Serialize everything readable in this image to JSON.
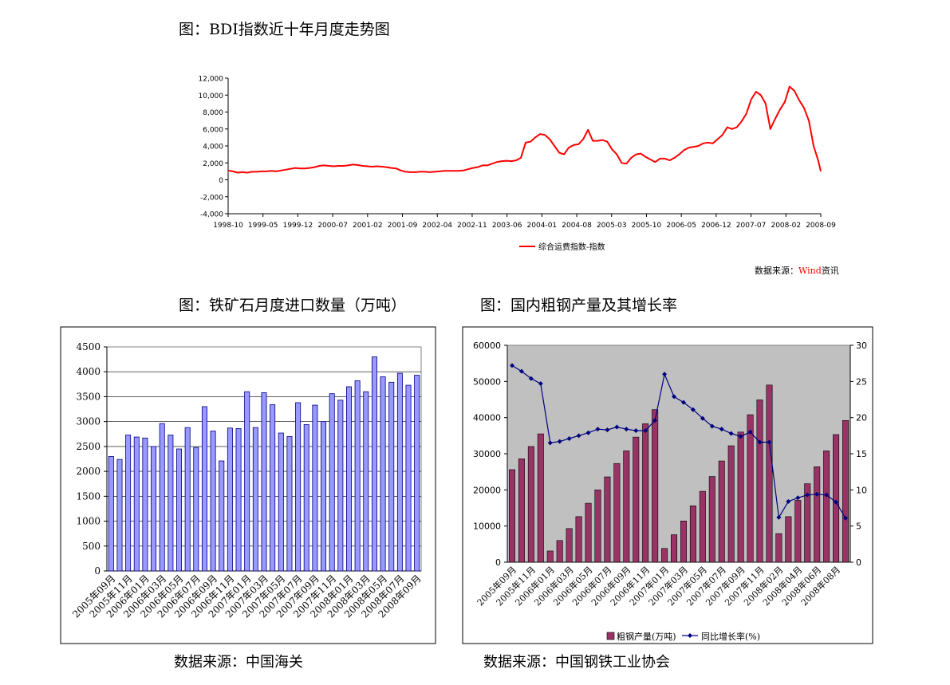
{
  "page": {
    "bdi_title": "图：BDI指数近十年月度走势图",
    "ore_title": "图：铁矿石月度进口数量（万吨）",
    "steel_title": "图：国内粗钢产量及其增长率",
    "ore_source": "数据来源：中国海关",
    "steel_source": "数据来源：中国钢铁工业协会"
  },
  "chart_data": [
    {
      "id": "bdi",
      "type": "line",
      "title": "BDI指数近十年月度走势图",
      "legend": "综合运费指数-指数",
      "source_label": "数据来源：",
      "source_name": "Wind",
      "source_suffix": "资讯",
      "colors": {
        "line": "#ff0000",
        "source": "#ff0000"
      },
      "ylim": [
        -4000,
        12000
      ],
      "yticks": [
        "12,000",
        "10,000",
        "8,000",
        "6,000",
        "4,000",
        "2,000",
        "0",
        "-2,000",
        "-4,000"
      ],
      "ytick_values": [
        12000,
        10000,
        8000,
        6000,
        4000,
        2000,
        0,
        -2000,
        -4000
      ],
      "xticks": [
        "1998-10",
        "1999-05",
        "1999-12",
        "2000-07",
        "2001-02",
        "2001-09",
        "2002-04",
        "2002-11",
        "2003-06",
        "2004-01",
        "2004-08",
        "2005-03",
        "2005-10",
        "2006-05",
        "2006-12",
        "2007-07",
        "2008-02",
        "2008-09"
      ],
      "points": [
        [
          0,
          1100
        ],
        [
          2,
          1000
        ],
        [
          4,
          850
        ],
        [
          6,
          900
        ],
        [
          8,
          850
        ],
        [
          10,
          950
        ],
        [
          12,
          950
        ],
        [
          14,
          1000
        ],
        [
          16,
          1000
        ],
        [
          18,
          1050
        ],
        [
          20,
          1000
        ],
        [
          22,
          1100
        ],
        [
          24,
          1200
        ],
        [
          26,
          1300
        ],
        [
          28,
          1400
        ],
        [
          30,
          1350
        ],
        [
          32,
          1350
        ],
        [
          34,
          1400
        ],
        [
          36,
          1500
        ],
        [
          38,
          1650
        ],
        [
          40,
          1700
        ],
        [
          42,
          1650
        ],
        [
          44,
          1600
        ],
        [
          46,
          1650
        ],
        [
          48,
          1650
        ],
        [
          50,
          1700
        ],
        [
          52,
          1800
        ],
        [
          54,
          1750
        ],
        [
          56,
          1650
        ],
        [
          58,
          1600
        ],
        [
          60,
          1550
        ],
        [
          62,
          1600
        ],
        [
          64,
          1550
        ],
        [
          66,
          1500
        ],
        [
          68,
          1400
        ],
        [
          70,
          1350
        ],
        [
          72,
          1100
        ],
        [
          74,
          950
        ],
        [
          76,
          900
        ],
        [
          78,
          900
        ],
        [
          80,
          950
        ],
        [
          82,
          950
        ],
        [
          84,
          900
        ],
        [
          86,
          950
        ],
        [
          88,
          1000
        ],
        [
          90,
          1050
        ],
        [
          92,
          1050
        ],
        [
          94,
          1050
        ],
        [
          96,
          1050
        ],
        [
          98,
          1100
        ],
        [
          100,
          1250
        ],
        [
          102,
          1400
        ],
        [
          104,
          1500
        ],
        [
          106,
          1700
        ],
        [
          108,
          1700
        ],
        [
          110,
          1900
        ],
        [
          112,
          2100
        ],
        [
          114,
          2200
        ],
        [
          116,
          2250
        ],
        [
          118,
          2200
        ],
        [
          120,
          2300
        ],
        [
          122,
          2600
        ],
        [
          124,
          4400
        ],
        [
          126,
          4500
        ],
        [
          128,
          5000
        ],
        [
          130,
          5400
        ],
        [
          132,
          5300
        ],
        [
          134,
          4800
        ],
        [
          136,
          4000
        ],
        [
          138,
          3200
        ],
        [
          140,
          3000
        ],
        [
          142,
          3800
        ],
        [
          144,
          4100
        ],
        [
          146,
          4200
        ],
        [
          148,
          4800
        ],
        [
          150,
          5900
        ],
        [
          152,
          4600
        ],
        [
          154,
          4600
        ],
        [
          156,
          4700
        ],
        [
          158,
          4500
        ],
        [
          160,
          3600
        ],
        [
          162,
          3000
        ],
        [
          164,
          2000
        ],
        [
          166,
          1900
        ],
        [
          168,
          2600
        ],
        [
          170,
          3000
        ],
        [
          172,
          3100
        ],
        [
          174,
          2700
        ],
        [
          176,
          2400
        ],
        [
          178,
          2100
        ],
        [
          180,
          2500
        ],
        [
          182,
          2500
        ],
        [
          184,
          2300
        ],
        [
          186,
          2600
        ],
        [
          188,
          3000
        ],
        [
          190,
          3500
        ],
        [
          192,
          3800
        ],
        [
          194,
          3900
        ],
        [
          196,
          4000
        ],
        [
          198,
          4300
        ],
        [
          200,
          4400
        ],
        [
          202,
          4300
        ],
        [
          204,
          4800
        ],
        [
          206,
          5300
        ],
        [
          208,
          6200
        ],
        [
          210,
          6000
        ],
        [
          212,
          6200
        ],
        [
          214,
          6900
        ],
        [
          216,
          7800
        ],
        [
          218,
          9500
        ],
        [
          220,
          10400
        ],
        [
          222,
          10000
        ],
        [
          224,
          9000
        ],
        [
          226,
          6000
        ],
        [
          228,
          7200
        ],
        [
          230,
          8300
        ],
        [
          232,
          9200
        ],
        [
          234,
          11000
        ],
        [
          236,
          10500
        ],
        [
          238,
          9400
        ],
        [
          240,
          8500
        ],
        [
          242,
          7000
        ],
        [
          244,
          4000
        ],
        [
          246,
          2200
        ],
        [
          247,
          1000
        ]
      ]
    },
    {
      "id": "iron_ore",
      "type": "bar",
      "title": "铁矿石月度进口数量（万吨）",
      "colors": {
        "bar": "#9999ff",
        "bar_edge": "#000080",
        "plot_bg": "#ffffff"
      },
      "ylim": [
        0,
        4500
      ],
      "yticks": [
        "4500",
        "4000",
        "3500",
        "3000",
        "2500",
        "2000",
        "1500",
        "1000",
        "500",
        "0"
      ],
      "ytick_values": [
        4500,
        4000,
        3500,
        3000,
        2500,
        2000,
        1500,
        1000,
        500,
        0
      ],
      "values": [
        2300,
        2240,
        2730,
        2690,
        2670,
        2500,
        2960,
        2730,
        2450,
        2880,
        2480,
        3300,
        2810,
        2210,
        2870,
        2860,
        3600,
        2880,
        3580,
        3340,
        2770,
        2700,
        3380,
        2940,
        3330,
        3000,
        3560,
        3430,
        3700,
        3820,
        3600,
        4300,
        3900,
        3790,
        3970,
        3730,
        3930
      ],
      "xticks": [
        "2005年09月",
        "2005年11月",
        "2006年01月",
        "2006年03月",
        "2006年05月",
        "2006年07月",
        "2006年09月",
        "2006年11月",
        "2007年01月",
        "2007年03月",
        "2007年05月",
        "2007年07月",
        "2007年09月",
        "2007年11月",
        "2008年01月",
        "2008年03月",
        "2008年05月",
        "2008年07月",
        "2008年09月"
      ],
      "xtick_positions": [
        0,
        2,
        4,
        6,
        8,
        10,
        12,
        14,
        16,
        18,
        20,
        22,
        24,
        26,
        28,
        30,
        32,
        34,
        36
      ]
    },
    {
      "id": "crude_steel",
      "type": "bar+line",
      "title": "国内粗钢产量及其增长率",
      "colors": {
        "bar": "#993366",
        "line": "#000080",
        "plot_bg": "#c0c0c0"
      },
      "series": [
        {
          "name": "粗钢产量(万吨)",
          "type": "bar",
          "values": [
            25600,
            28600,
            32000,
            35500,
            3100,
            6000,
            9300,
            12600,
            16300,
            20000,
            23600,
            27300,
            30800,
            34600,
            38300,
            42200,
            3800,
            7600,
            11400,
            15600,
            19600,
            23700,
            28000,
            32200,
            36000,
            40800,
            44900,
            49000,
            7900,
            12600,
            17100,
            21700,
            26400,
            30800,
            35300,
            39200
          ]
        },
        {
          "name": "同比增长率(%)",
          "type": "line",
          "values": [
            27.2,
            26.4,
            25.4,
            24.7,
            16.5,
            16.7,
            17.1,
            17.5,
            17.9,
            18.4,
            18.3,
            18.7,
            18.4,
            18.2,
            18.2,
            19.6,
            26.0,
            22.9,
            22.1,
            21.1,
            19.9,
            18.8,
            18.4,
            17.8,
            17.4,
            18.0,
            16.6,
            16.6,
            6.2,
            8.4,
            8.9,
            9.3,
            9.4,
            9.3,
            8.3,
            6.1
          ]
        }
      ],
      "y1lim": [
        0,
        60000
      ],
      "y1ticks": [
        "60000",
        "50000",
        "40000",
        "30000",
        "20000",
        "10000",
        "0"
      ],
      "y1tick_values": [
        60000,
        50000,
        40000,
        30000,
        20000,
        10000,
        0
      ],
      "y2lim": [
        0,
        30
      ],
      "y2ticks": [
        "30",
        "25",
        "20",
        "15",
        "10",
        "5",
        "0"
      ],
      "y2tick_values": [
        30,
        25,
        20,
        15,
        10,
        5,
        0
      ],
      "xticks": [
        "2005年09月",
        "2005年11月",
        "2006年01月",
        "2006年03月",
        "2006年05月",
        "2006年07月",
        "2006年09月",
        "2006年11月",
        "2007年01月",
        "2007年03月",
        "2007年05月",
        "2007年07月",
        "2007年09月",
        "2007年11月",
        "2008年02月",
        "2008年04月",
        "2008年06月",
        "2008年08月"
      ],
      "xtick_positions": [
        0,
        2,
        4,
        6,
        8,
        10,
        12,
        14,
        16,
        18,
        20,
        22,
        24,
        26,
        28,
        30,
        32,
        34
      ],
      "legend": [
        "粗钢产量(万吨)",
        "同比增长率(%)"
      ]
    }
  ]
}
